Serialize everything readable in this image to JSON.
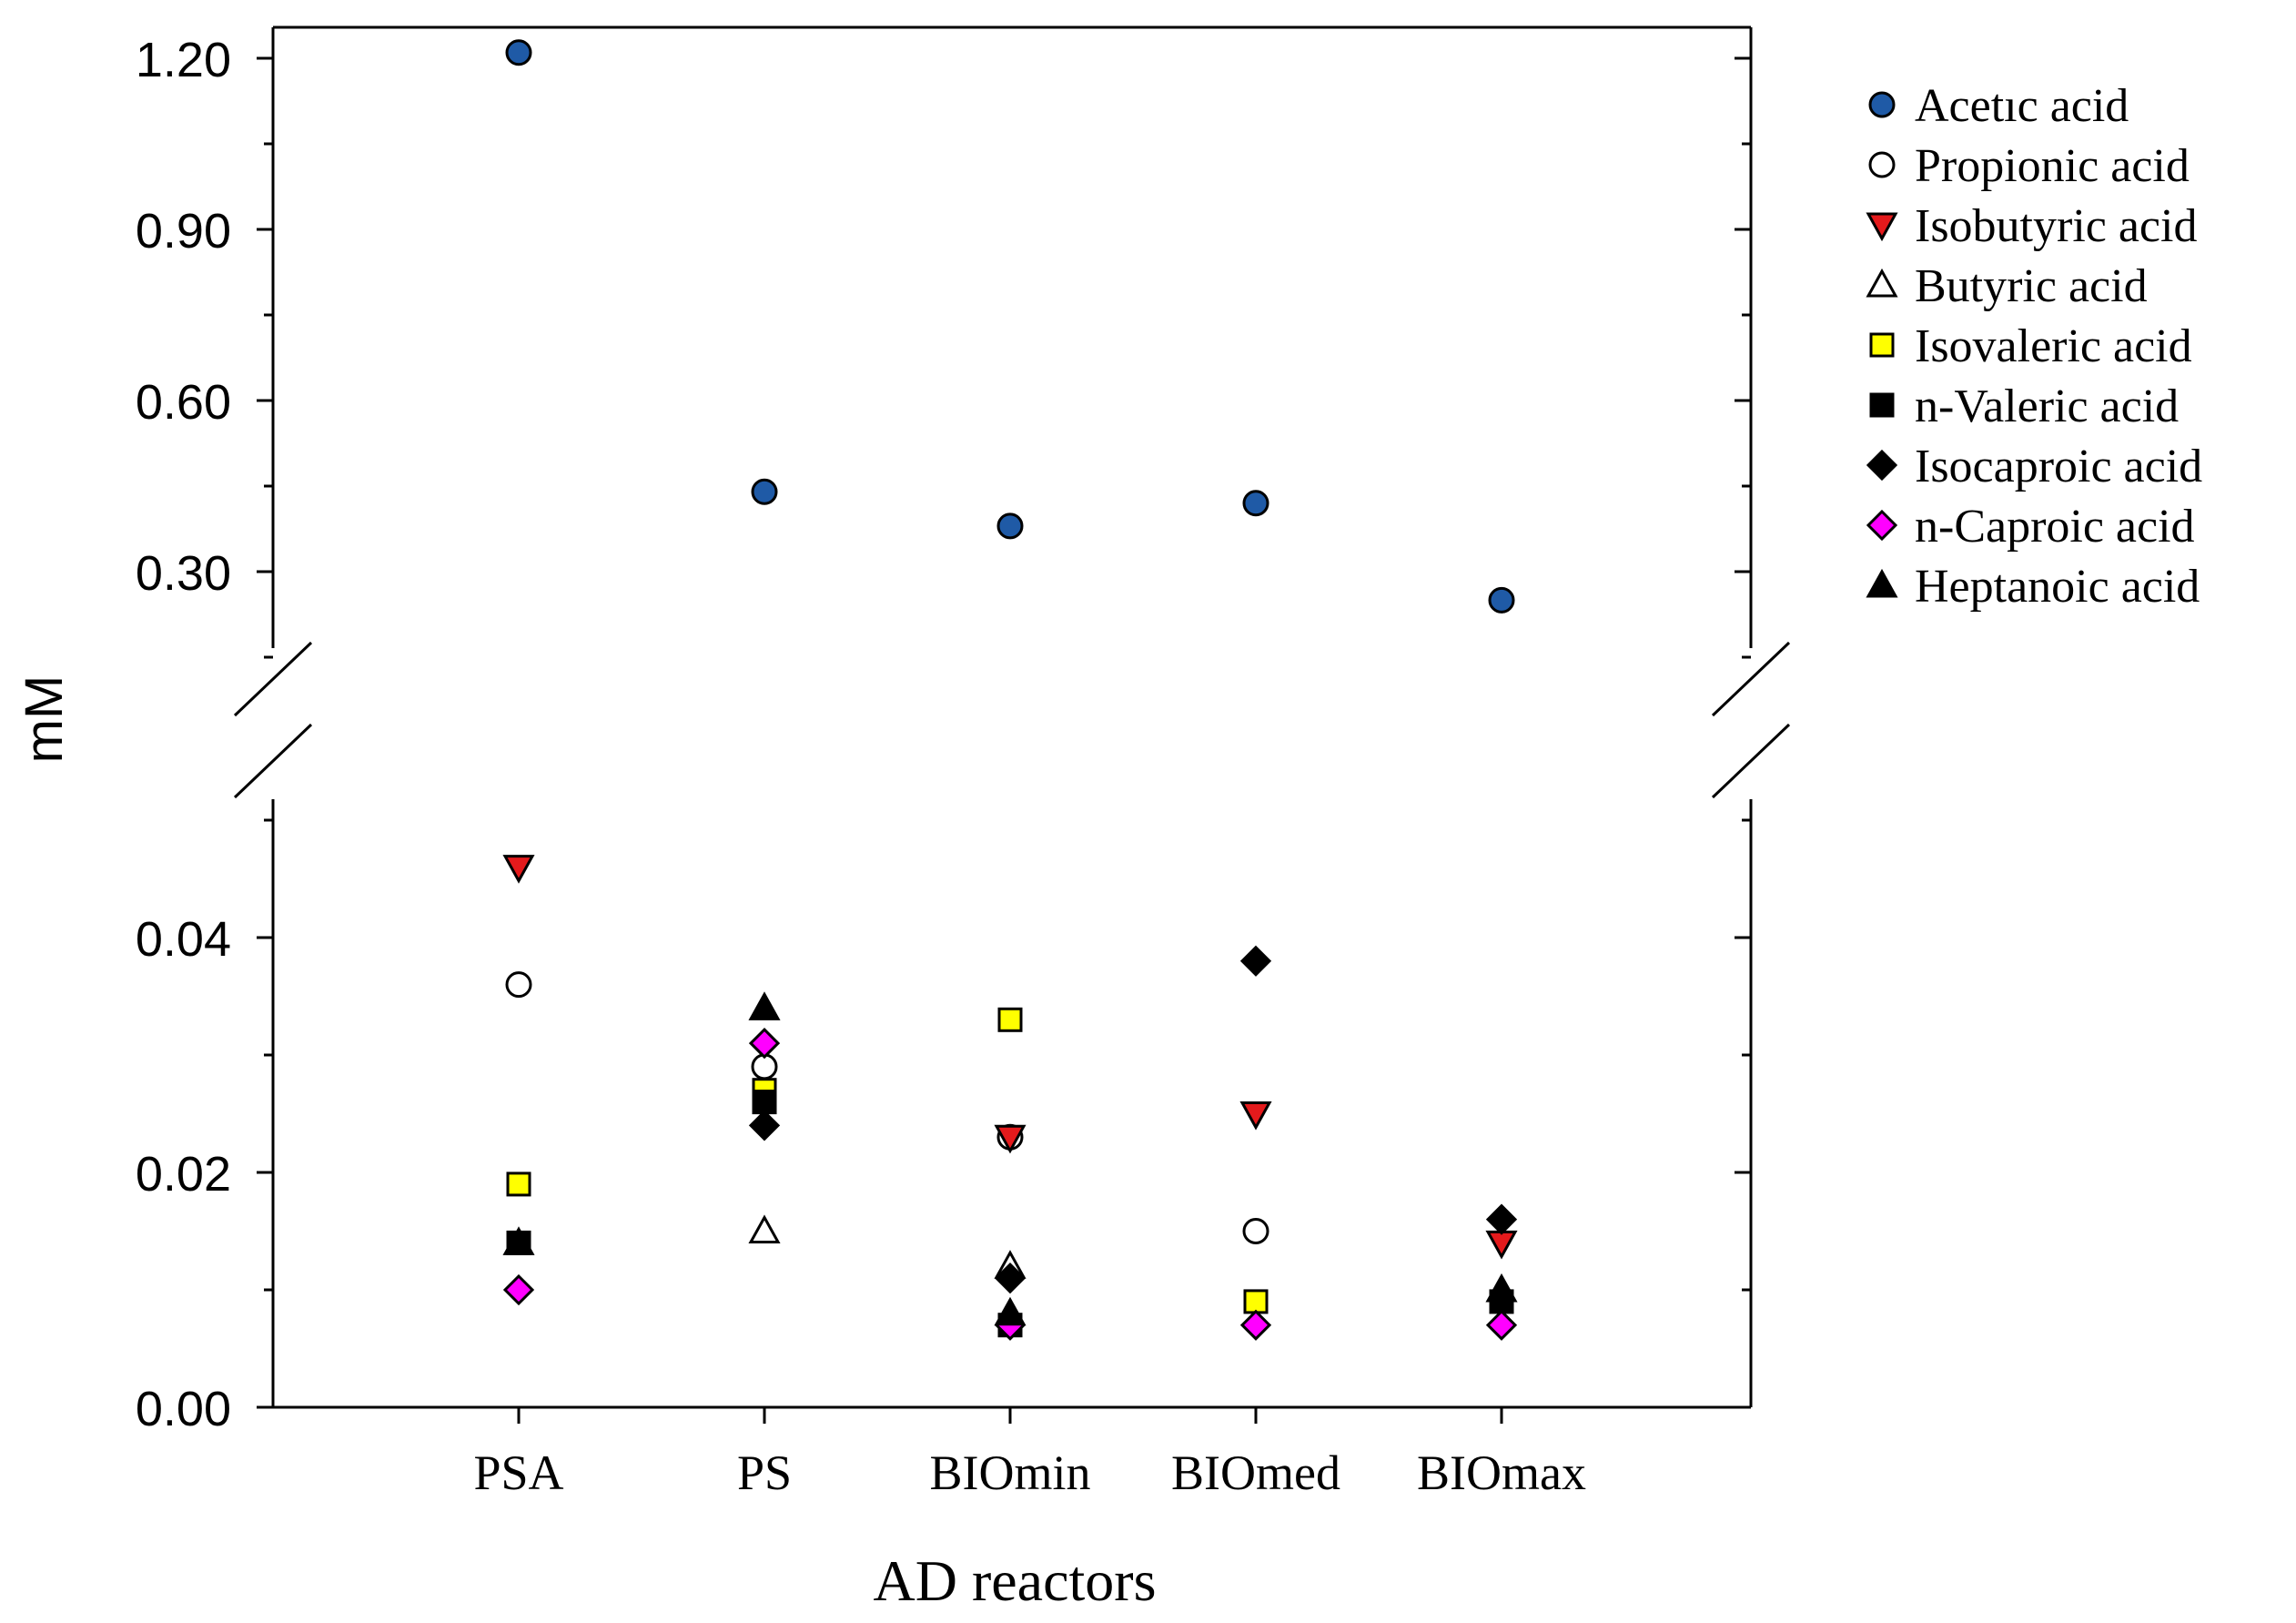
{
  "chart_data": {
    "type": "scatter",
    "title": "",
    "xlabel": "AD reactors",
    "ylabel": "mM",
    "categories": [
      "PSA",
      "PS",
      "BIOmin",
      "BIOmed",
      "BIOmax"
    ],
    "y_axis_break": true,
    "upper_panel": {
      "ylim": [
        0.15,
        1.24
      ],
      "ticks": [
        "1.20",
        "0.90",
        "0.60",
        "0.30"
      ]
    },
    "lower_panel": {
      "ylim": [
        0.0,
        0.052
      ],
      "ticks": [
        "0.04",
        "0.02",
        "0.00"
      ]
    },
    "legend_position": "right",
    "series": [
      {
        "name": "Acetıc acid",
        "marker": "circle",
        "fill": "#1f5aa6",
        "values": [
          1.21,
          0.44,
          0.38,
          0.42,
          0.25
        ]
      },
      {
        "name": "Propionic acid",
        "marker": "circle",
        "fill": "#ffffff",
        "values": [
          0.036,
          0.029,
          0.023,
          0.015,
          null
        ]
      },
      {
        "name": "Isobutyric acid",
        "marker": "triangle-down",
        "fill": "#e41a1c",
        "values": [
          0.046,
          null,
          0.023,
          0.025,
          0.014
        ]
      },
      {
        "name": "Butyric acid",
        "marker": "triangle-up",
        "fill": "#ffffff",
        "values": [
          null,
          0.015,
          0.012,
          null,
          null
        ]
      },
      {
        "name": "Isovaleric acid",
        "marker": "square",
        "fill": "#ffff00",
        "values": [
          0.019,
          0.027,
          0.033,
          0.009,
          null
        ]
      },
      {
        "name": "n-Valeric acid",
        "marker": "square",
        "fill": "#000000",
        "values": [
          0.014,
          0.026,
          0.007,
          null,
          0.009
        ]
      },
      {
        "name": "Isocaproic acid",
        "marker": "diamond",
        "fill": "#000000",
        "values": [
          null,
          0.024,
          0.011,
          0.038,
          0.016
        ]
      },
      {
        "name": "n-Caproic acid",
        "marker": "diamond",
        "fill": "#ff00ff",
        "values": [
          0.01,
          0.031,
          0.007,
          0.007,
          0.007
        ]
      },
      {
        "name": "Heptanoic acid",
        "marker": "triangle-up",
        "fill": "#000000",
        "values": [
          0.014,
          0.034,
          0.008,
          null,
          0.01
        ]
      }
    ]
  }
}
